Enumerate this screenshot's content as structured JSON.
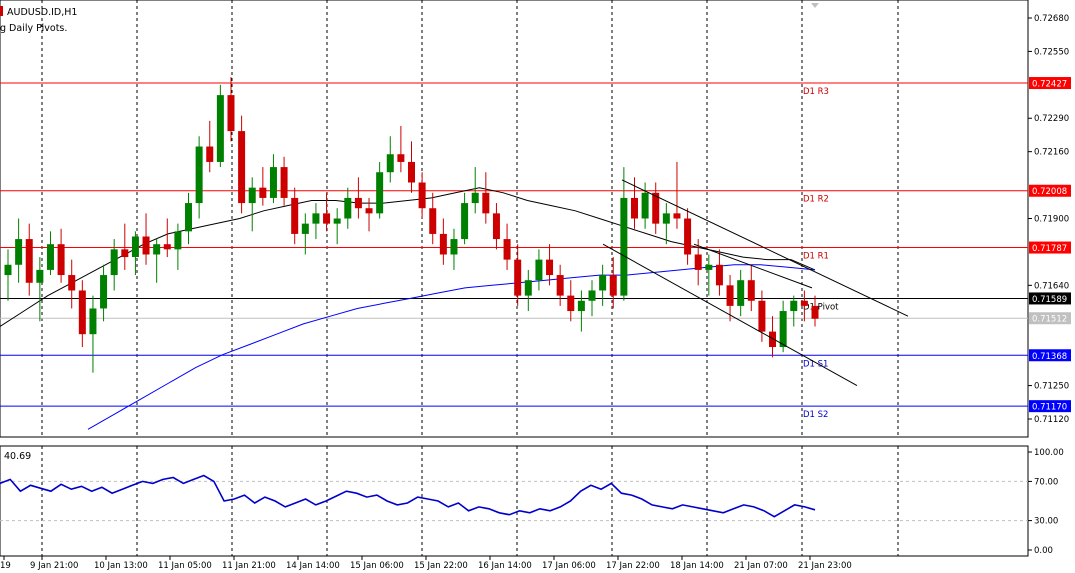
{
  "window": {
    "symbol_title": "AUDUSD.ID,H1",
    "indicator_title": "g Daily Pivots."
  },
  "colors": {
    "bull": "#008000",
    "bear": "#cc0000",
    "resistance": "#ff0000",
    "support": "#0000ff",
    "ma_fast": "#000000",
    "ma_slow": "#0000ff",
    "grid": "#000000",
    "oscillator": "#0000cc"
  },
  "chart_data": [
    {
      "type": "candlestick",
      "ylim": [
        0.7105,
        0.7275
      ],
      "price_ticks": [
        "0.72680",
        "0.72550",
        "0.72290",
        "0.72160",
        "0.71900",
        "0.71640",
        "0.71250",
        "0.71120"
      ],
      "time_ticks": [
        "19",
        "9 Jan 21:00",
        "10 Jan 13:00",
        "11 Jan 05:00",
        "11 Jan 21:00",
        "14 Jan 14:00",
        "15 Jan 06:00",
        "15 Jan 22:00",
        "16 Jan 14:00",
        "17 Jan 06:00",
        "17 Jan 22:00",
        "18 Jan 14:00",
        "21 Jan 07:00",
        "21 Jan 23:00"
      ],
      "pivot_levels": [
        {
          "name": "D1 R3",
          "value": 0.72427,
          "label": "0.72427",
          "kind": "resistance"
        },
        {
          "name": "D1 R2",
          "value": 0.72008,
          "label": "0.72008",
          "kind": "resistance"
        },
        {
          "name": "D1 R1",
          "value": 0.71787,
          "label": "0.71787",
          "kind": "resistance"
        },
        {
          "name": "D1 Pivot",
          "value": 0.71589,
          "label": "0.71589",
          "kind": "pivot"
        },
        {
          "name": "D1 S1",
          "value": 0.71368,
          "label": "0.71368",
          "kind": "support"
        },
        {
          "name": "D1 S2",
          "value": 0.7117,
          "label": "0.71170",
          "kind": "support"
        }
      ],
      "current_price": {
        "value": 0.71512,
        "label": "0.71512"
      },
      "candles": [
        {
          "o": 0.7168,
          "h": 0.7178,
          "l": 0.7158,
          "c": 0.7172
        },
        {
          "o": 0.7172,
          "h": 0.719,
          "l": 0.7165,
          "c": 0.7182
        },
        {
          "o": 0.7182,
          "h": 0.7188,
          "l": 0.716,
          "c": 0.7165
        },
        {
          "o": 0.7165,
          "h": 0.7175,
          "l": 0.715,
          "c": 0.717
        },
        {
          "o": 0.717,
          "h": 0.7185,
          "l": 0.7168,
          "c": 0.718
        },
        {
          "o": 0.718,
          "h": 0.7186,
          "l": 0.7165,
          "c": 0.7168
        },
        {
          "o": 0.7168,
          "h": 0.7174,
          "l": 0.7155,
          "c": 0.7162
        },
        {
          "o": 0.7162,
          "h": 0.7166,
          "l": 0.714,
          "c": 0.7145
        },
        {
          "o": 0.7145,
          "h": 0.716,
          "l": 0.713,
          "c": 0.7155
        },
        {
          "o": 0.7155,
          "h": 0.7172,
          "l": 0.715,
          "c": 0.7168
        },
        {
          "o": 0.7168,
          "h": 0.7182,
          "l": 0.7162,
          "c": 0.7178
        },
        {
          "o": 0.7178,
          "h": 0.7188,
          "l": 0.717,
          "c": 0.7175
        },
        {
          "o": 0.7175,
          "h": 0.7185,
          "l": 0.7168,
          "c": 0.7183
        },
        {
          "o": 0.7183,
          "h": 0.7192,
          "l": 0.7172,
          "c": 0.7176
        },
        {
          "o": 0.7176,
          "h": 0.7182,
          "l": 0.7165,
          "c": 0.718
        },
        {
          "o": 0.718,
          "h": 0.719,
          "l": 0.7175,
          "c": 0.7178
        },
        {
          "o": 0.7178,
          "h": 0.7188,
          "l": 0.717,
          "c": 0.7185
        },
        {
          "o": 0.7185,
          "h": 0.72,
          "l": 0.718,
          "c": 0.7196
        },
        {
          "o": 0.7196,
          "h": 0.7222,
          "l": 0.719,
          "c": 0.7218
        },
        {
          "o": 0.7218,
          "h": 0.7228,
          "l": 0.7208,
          "c": 0.7212
        },
        {
          "o": 0.7212,
          "h": 0.7242,
          "l": 0.721,
          "c": 0.7238
        },
        {
          "o": 0.7238,
          "h": 0.7245,
          "l": 0.722,
          "c": 0.7224
        },
        {
          "o": 0.7224,
          "h": 0.723,
          "l": 0.7192,
          "c": 0.7196
        },
        {
          "o": 0.7196,
          "h": 0.7206,
          "l": 0.7185,
          "c": 0.7202
        },
        {
          "o": 0.7202,
          "h": 0.721,
          "l": 0.7195,
          "c": 0.7198
        },
        {
          "o": 0.7198,
          "h": 0.7215,
          "l": 0.7196,
          "c": 0.721
        },
        {
          "o": 0.721,
          "h": 0.7214,
          "l": 0.7195,
          "c": 0.7198
        },
        {
          "o": 0.7198,
          "h": 0.7202,
          "l": 0.718,
          "c": 0.7184
        },
        {
          "o": 0.7184,
          "h": 0.7192,
          "l": 0.7176,
          "c": 0.7188
        },
        {
          "o": 0.7188,
          "h": 0.7196,
          "l": 0.7182,
          "c": 0.7192
        },
        {
          "o": 0.7192,
          "h": 0.72,
          "l": 0.7185,
          "c": 0.7188
        },
        {
          "o": 0.7188,
          "h": 0.7194,
          "l": 0.718,
          "c": 0.719
        },
        {
          "o": 0.719,
          "h": 0.7202,
          "l": 0.7186,
          "c": 0.7198
        },
        {
          "o": 0.7198,
          "h": 0.7206,
          "l": 0.719,
          "c": 0.7194
        },
        {
          "o": 0.7194,
          "h": 0.7198,
          "l": 0.7185,
          "c": 0.7192
        },
        {
          "o": 0.7192,
          "h": 0.7212,
          "l": 0.719,
          "c": 0.7208
        },
        {
          "o": 0.7208,
          "h": 0.7222,
          "l": 0.7204,
          "c": 0.7215
        },
        {
          "o": 0.7215,
          "h": 0.7226,
          "l": 0.7208,
          "c": 0.7212
        },
        {
          "o": 0.7212,
          "h": 0.722,
          "l": 0.72,
          "c": 0.7204
        },
        {
          "o": 0.7204,
          "h": 0.7208,
          "l": 0.719,
          "c": 0.7194
        },
        {
          "o": 0.7194,
          "h": 0.72,
          "l": 0.718,
          "c": 0.7184
        },
        {
          "o": 0.7184,
          "h": 0.719,
          "l": 0.7172,
          "c": 0.7176
        },
        {
          "o": 0.7176,
          "h": 0.7186,
          "l": 0.717,
          "c": 0.7182
        },
        {
          "o": 0.7182,
          "h": 0.72,
          "l": 0.718,
          "c": 0.7196
        },
        {
          "o": 0.7196,
          "h": 0.721,
          "l": 0.7192,
          "c": 0.72
        },
        {
          "o": 0.72,
          "h": 0.7208,
          "l": 0.7188,
          "c": 0.7192
        },
        {
          "o": 0.7192,
          "h": 0.7196,
          "l": 0.7178,
          "c": 0.7182
        },
        {
          "o": 0.7182,
          "h": 0.7188,
          "l": 0.717,
          "c": 0.7174
        },
        {
          "o": 0.7174,
          "h": 0.718,
          "l": 0.7156,
          "c": 0.716
        },
        {
          "o": 0.716,
          "h": 0.717,
          "l": 0.7154,
          "c": 0.7166
        },
        {
          "o": 0.7166,
          "h": 0.7178,
          "l": 0.7162,
          "c": 0.7174
        },
        {
          "o": 0.7174,
          "h": 0.718,
          "l": 0.7164,
          "c": 0.7168
        },
        {
          "o": 0.7168,
          "h": 0.7172,
          "l": 0.7156,
          "c": 0.716
        },
        {
          "o": 0.716,
          "h": 0.7166,
          "l": 0.715,
          "c": 0.7154
        },
        {
          "o": 0.7154,
          "h": 0.7162,
          "l": 0.7146,
          "c": 0.7158
        },
        {
          "o": 0.7158,
          "h": 0.7166,
          "l": 0.7152,
          "c": 0.7162
        },
        {
          "o": 0.7162,
          "h": 0.7172,
          "l": 0.7156,
          "c": 0.7168
        },
        {
          "o": 0.7168,
          "h": 0.7175,
          "l": 0.7155,
          "c": 0.716
        },
        {
          "o": 0.716,
          "h": 0.721,
          "l": 0.7158,
          "c": 0.7198
        },
        {
          "o": 0.7198,
          "h": 0.7206,
          "l": 0.7186,
          "c": 0.719
        },
        {
          "o": 0.719,
          "h": 0.7204,
          "l": 0.7186,
          "c": 0.72
        },
        {
          "o": 0.72,
          "h": 0.7204,
          "l": 0.7184,
          "c": 0.7188
        },
        {
          "o": 0.7188,
          "h": 0.7196,
          "l": 0.718,
          "c": 0.7192
        },
        {
          "o": 0.7192,
          "h": 0.7212,
          "l": 0.7186,
          "c": 0.719
        },
        {
          "o": 0.719,
          "h": 0.7194,
          "l": 0.7172,
          "c": 0.7176
        },
        {
          "o": 0.7176,
          "h": 0.7182,
          "l": 0.7164,
          "c": 0.717
        },
        {
          "o": 0.717,
          "h": 0.7176,
          "l": 0.716,
          "c": 0.7172
        },
        {
          "o": 0.7172,
          "h": 0.7178,
          "l": 0.716,
          "c": 0.7164
        },
        {
          "o": 0.7164,
          "h": 0.7168,
          "l": 0.715,
          "c": 0.7156
        },
        {
          "o": 0.7156,
          "h": 0.717,
          "l": 0.7152,
          "c": 0.7166
        },
        {
          "o": 0.7166,
          "h": 0.7172,
          "l": 0.7154,
          "c": 0.7158
        },
        {
          "o": 0.7158,
          "h": 0.7162,
          "l": 0.7142,
          "c": 0.7146
        },
        {
          "o": 0.7146,
          "h": 0.7152,
          "l": 0.7136,
          "c": 0.714
        },
        {
          "o": 0.714,
          "h": 0.7158,
          "l": 0.7138,
          "c": 0.7154
        },
        {
          "o": 0.7154,
          "h": 0.716,
          "l": 0.7148,
          "c": 0.7158
        },
        {
          "o": 0.7158,
          "h": 0.7162,
          "l": 0.715,
          "c": 0.7156
        },
        {
          "o": 0.7156,
          "h": 0.716,
          "l": 0.7148,
          "c": 0.7151
        }
      ],
      "ma_fast": [
        0.7148,
        0.7154,
        0.716,
        0.7165,
        0.717,
        0.7175,
        0.718,
        0.7184,
        0.7186,
        0.7188,
        0.719,
        0.7193,
        0.7195,
        0.7197,
        0.7197,
        0.7196,
        0.7196,
        0.7197,
        0.7198,
        0.72,
        0.7202,
        0.72,
        0.7197,
        0.7195,
        0.7193,
        0.719,
        0.7187,
        0.7184,
        0.7181,
        0.7179,
        0.7177,
        0.7175,
        0.7174,
        0.7174,
        0.717
      ],
      "ma_slow": [
        0.7108,
        0.7114,
        0.712,
        0.7126,
        0.7132,
        0.7137,
        0.7141,
        0.7145,
        0.7149,
        0.7152,
        0.7155,
        0.7157,
        0.7159,
        0.7161,
        0.7163,
        0.7164,
        0.7165,
        0.7166,
        0.7167,
        0.7168,
        0.7168,
        0.7169,
        0.717,
        0.7171,
        0.7172,
        0.7172,
        0.7171,
        0.717
      ]
    },
    {
      "type": "line",
      "title": "40.69",
      "ylim": [
        0,
        100
      ],
      "y_ticks": [
        "100.00",
        "70.00",
        "30.00",
        "0.00"
      ],
      "values": [
        68,
        72,
        60,
        66,
        63,
        60,
        67,
        62,
        65,
        60,
        64,
        58,
        62,
        66,
        70,
        68,
        72,
        74,
        68,
        72,
        76,
        70,
        50,
        52,
        56,
        48,
        54,
        50,
        44,
        48,
        52,
        46,
        50,
        55,
        60,
        58,
        54,
        56,
        50,
        46,
        48,
        54,
        52,
        50,
        44,
        48,
        40,
        44,
        42,
        38,
        36,
        40,
        38,
        42,
        40,
        44,
        50,
        60,
        66,
        62,
        68,
        58,
        56,
        52,
        46,
        44,
        42,
        46,
        44,
        42,
        40,
        38,
        42,
        46,
        44,
        40,
        34,
        40,
        46,
        44,
        41
      ]
    }
  ]
}
